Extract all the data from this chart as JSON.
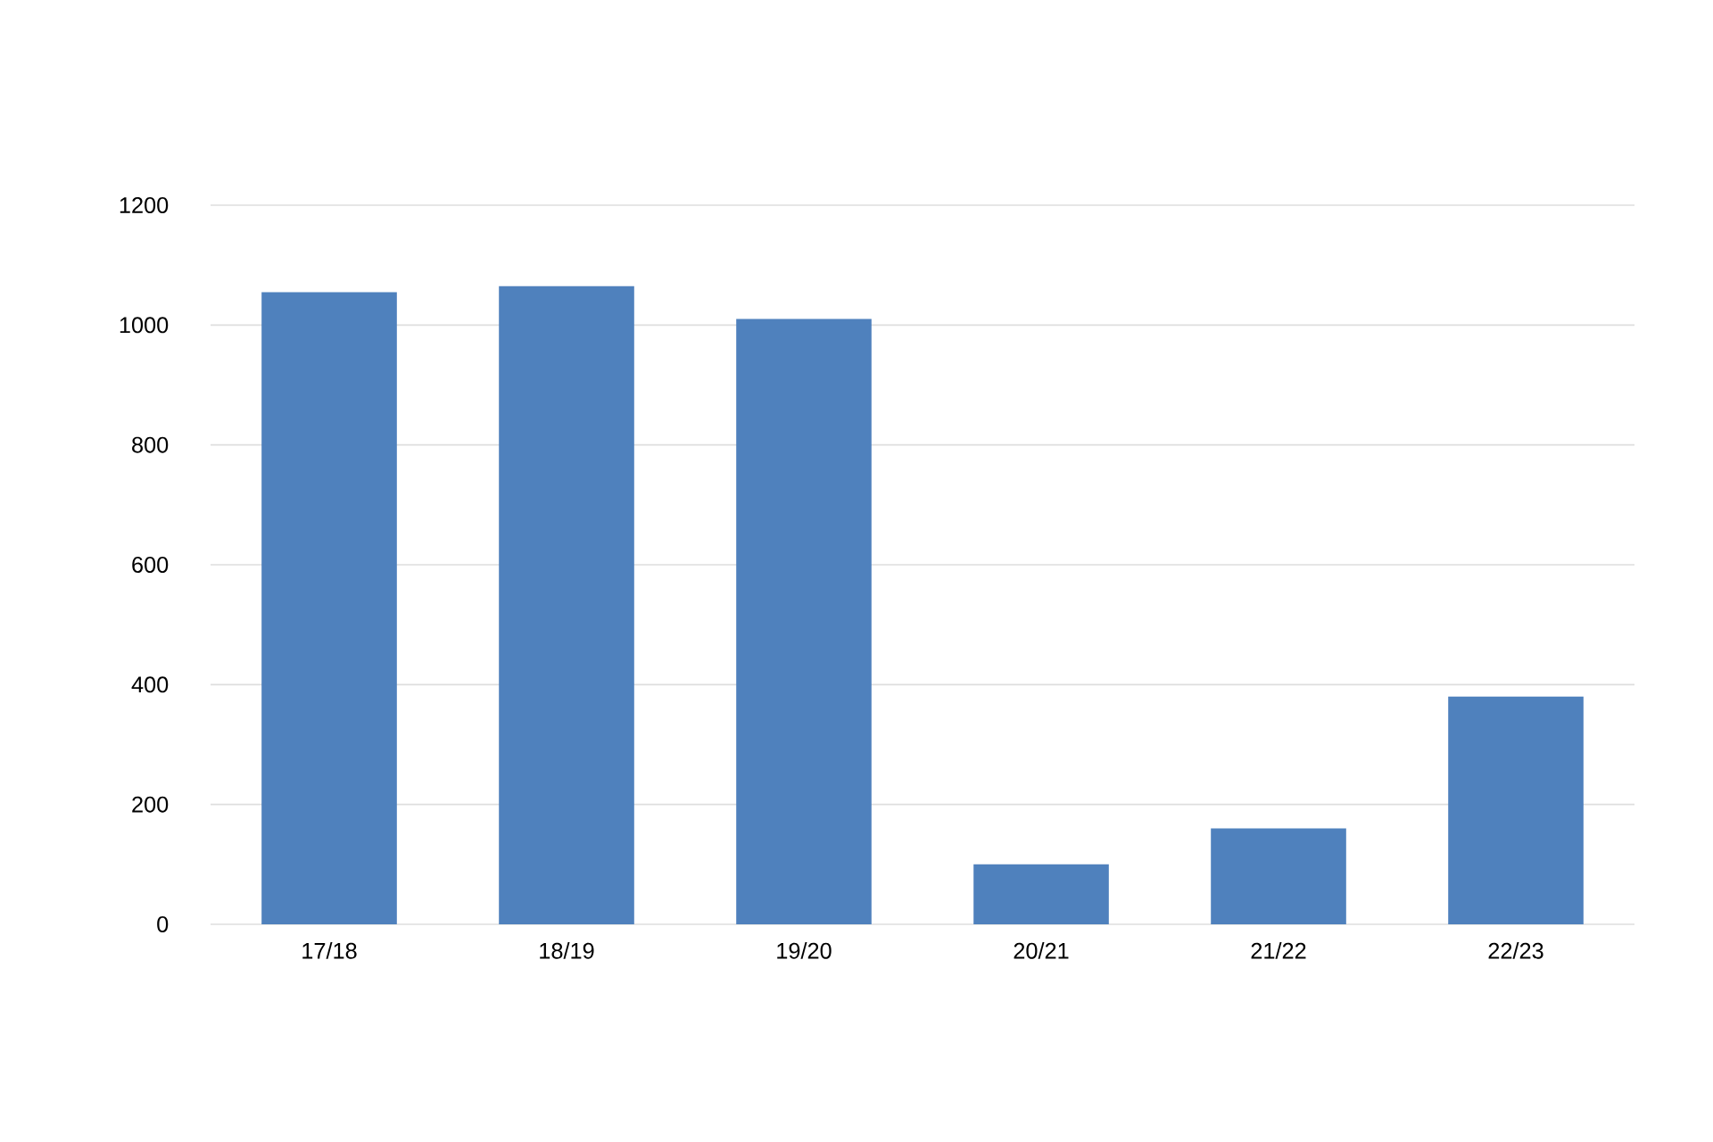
{
  "chart_data": {
    "type": "bar",
    "categories": [
      "17/18",
      "18/19",
      "19/20",
      "20/21",
      "21/22",
      "22/23"
    ],
    "values": [
      1055,
      1065,
      1010,
      100,
      160,
      380
    ],
    "color": "#4f81bd",
    "ylim": [
      0,
      1200
    ],
    "yticks": [
      0,
      200,
      400,
      600,
      800,
      1000,
      1200
    ],
    "grid": "y"
  }
}
